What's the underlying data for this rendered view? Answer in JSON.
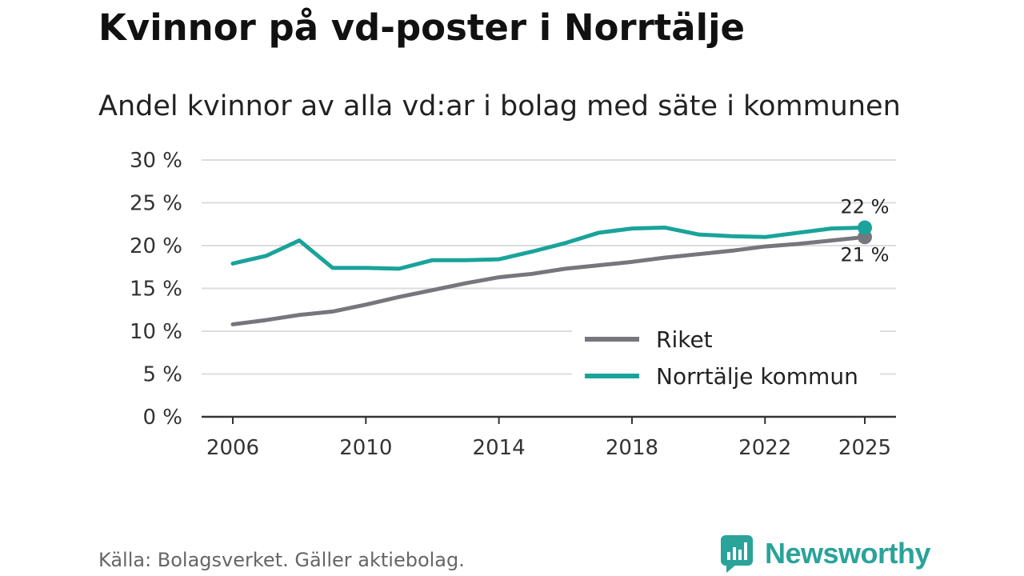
{
  "title": "Kvinnor på vd-poster i Norrtälje",
  "subtitle": "Andel kvinnor av alla vd:ar i bolag med säte i kommunen",
  "source": "Källa: Bolagsverket. Gäller aktiebolag.",
  "brand": "Newsworthy",
  "colors": {
    "riket": "#77767c",
    "norrtalje": "#1aa39a",
    "grid": "#dddddd",
    "axis": "#333333"
  },
  "chart_data": {
    "type": "line",
    "title": "Kvinnor på vd-poster i Norrtälje",
    "subtitle": "Andel kvinnor av alla vd:ar i bolag med säte i kommunen",
    "xlabel": "",
    "ylabel": "",
    "ylim": [
      0,
      30
    ],
    "xlim": [
      2006,
      2025
    ],
    "y_ticks": [
      0,
      5,
      10,
      15,
      20,
      25,
      30
    ],
    "y_tick_labels": [
      "0 %",
      "5 %",
      "10 %",
      "15 %",
      "20 %",
      "25 %",
      "30 %"
    ],
    "x_ticks": [
      2006,
      2010,
      2014,
      2018,
      2022,
      2025
    ],
    "x_tick_labels": [
      "2006",
      "2010",
      "2014",
      "2018",
      "2022",
      "2025"
    ],
    "grid": true,
    "legend_position": "bottom-right",
    "x": [
      2006,
      2007,
      2008,
      2009,
      2010,
      2011,
      2012,
      2013,
      2014,
      2015,
      2016,
      2017,
      2018,
      2019,
      2020,
      2021,
      2022,
      2023,
      2024,
      2025
    ],
    "series": [
      {
        "name": "Riket",
        "color": "#77767c",
        "values": [
          10.8,
          11.3,
          11.9,
          12.3,
          13.1,
          14.0,
          14.8,
          15.6,
          16.3,
          16.7,
          17.3,
          17.7,
          18.1,
          18.6,
          19.0,
          19.4,
          19.9,
          20.2,
          20.6,
          21.0
        ],
        "end_label": "21 %"
      },
      {
        "name": "Norrtälje kommun",
        "color": "#1aa39a",
        "values": [
          17.9,
          18.8,
          20.6,
          17.4,
          17.4,
          17.3,
          18.3,
          18.3,
          18.4,
          19.3,
          20.3,
          21.5,
          22.0,
          22.1,
          21.3,
          21.1,
          21.0,
          21.5,
          22.0,
          22.1
        ],
        "end_label": "22 %"
      }
    ]
  }
}
